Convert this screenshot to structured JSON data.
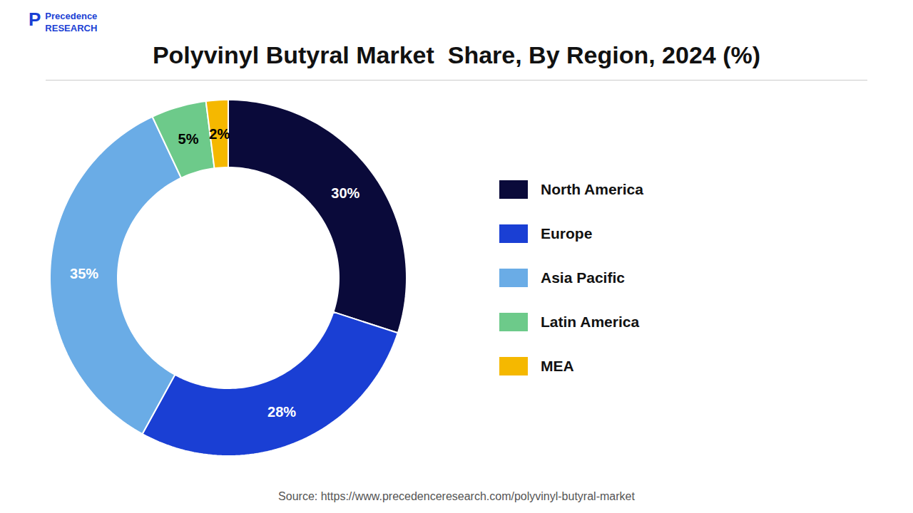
{
  "chart_data": {
    "type": "donut",
    "title": "Polyvinyl Butyral Market  Share, By Region, 2024 (%)",
    "categories": [
      "North America",
      "Europe",
      "Asia Pacific",
      "Latin America",
      "MEA"
    ],
    "values": [
      30,
      28,
      35,
      5,
      2
    ],
    "value_labels": [
      "30%",
      "28%",
      "35%",
      "5%",
      "2%"
    ],
    "colors": [
      "#0a0a3a",
      "#1a3fd4",
      "#6aace6",
      "#6dca8a",
      "#f5b800"
    ],
    "data_labels": true,
    "legend": "right",
    "tick_labels": false,
    "caption": "Source: https://www.precedenceresearch.com/polyvinyl-butyral-market",
    "annotations": [
      "P",
      "Precedence",
      "RESEARCH"
    ]
  }
}
